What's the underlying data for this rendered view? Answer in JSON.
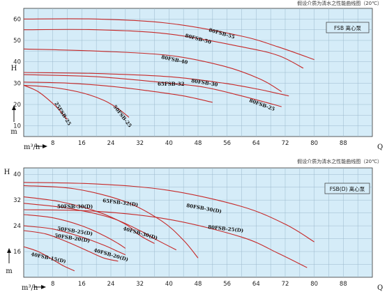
{
  "chart_data": [
    {
      "type": "line",
      "title": "FSB 离心泵",
      "subtitle": "假设介质为清水之性能曲线图（20℃）",
      "xlabel": "Q",
      "xunit": "m³/h",
      "ylabel": "H",
      "yunit": "m",
      "xlim": [
        0,
        96
      ],
      "ylim": [
        5,
        65
      ],
      "xticks": [
        8,
        16,
        24,
        32,
        40,
        48,
        56,
        64,
        72,
        80,
        88
      ],
      "yticks": [
        10,
        20,
        30,
        40,
        50,
        60
      ],
      "grid": true,
      "line_color": "#c62828",
      "series": [
        {
          "name": "80FSB-55",
          "x": [
            0,
            20,
            40,
            60,
            70,
            80
          ],
          "y": [
            60,
            60,
            58,
            52,
            47,
            41
          ]
        },
        {
          "name": "80FSB-50",
          "x": [
            0,
            20,
            40,
            60,
            70,
            77
          ],
          "y": [
            55,
            55,
            53,
            47,
            43,
            37
          ]
        },
        {
          "name": "80FSB-40",
          "x": [
            0,
            20,
            40,
            55,
            65,
            71
          ],
          "y": [
            46,
            45,
            43,
            38,
            32,
            26
          ]
        },
        {
          "name": "80FSB-30",
          "x": [
            0,
            20,
            40,
            55,
            65,
            73
          ],
          "y": [
            35,
            34.5,
            33,
            30,
            27,
            24
          ]
        },
        {
          "name": "80FSB-25",
          "x": [
            0,
            20,
            40,
            50,
            60,
            71
          ],
          "y": [
            34,
            33,
            30,
            28,
            24,
            19
          ]
        },
        {
          "name": "65FSB-32",
          "x": [
            0,
            12,
            24,
            34,
            44,
            52
          ],
          "y": [
            30.5,
            30,
            28.5,
            26.5,
            24,
            21
          ]
        },
        {
          "name": "50FSB-25",
          "x": [
            0,
            8,
            16,
            22,
            26,
            29
          ],
          "y": [
            29,
            28,
            25.5,
            22,
            18,
            14
          ]
        },
        {
          "name": "25FSB-25",
          "x": [
            0,
            4,
            8,
            10,
            12
          ],
          "y": [
            29,
            26,
            20.5,
            17,
            13
          ]
        }
      ],
      "annotations": [
        "80FSB-55",
        "80FSB-50",
        "80FSB-40",
        "80FSB-30",
        "80FSB-25",
        "65FSB-32",
        "50FSB-25",
        "25FSB-25"
      ]
    },
    {
      "type": "line",
      "title": "FSB(D) 离心泵",
      "subtitle": "假设介质为清水之性能曲线图（20℃）",
      "xlabel": "Q",
      "xunit": "m³/h",
      "ylabel": "H",
      "yunit": "m",
      "xlim": [
        0,
        96
      ],
      "ylim": [
        8,
        42
      ],
      "xticks": [
        8,
        16,
        24,
        32,
        40,
        48,
        56,
        64,
        72,
        80,
        88
      ],
      "yticks": [
        16,
        24,
        32,
        40
      ],
      "grid": true,
      "line_color": "#c62828",
      "series": [
        {
          "name": "80FSB-30(D)",
          "x": [
            0,
            20,
            40,
            60,
            72,
            80
          ],
          "y": [
            37.5,
            37,
            35,
            30,
            24.5,
            19
          ]
        },
        {
          "name": "80FSB-25(D)",
          "x": [
            0,
            20,
            40,
            60,
            70,
            78
          ],
          "y": [
            29,
            28.5,
            26,
            20.5,
            15.5,
            11
          ]
        },
        {
          "name": "65FSB-32(D)",
          "x": [
            0,
            14,
            28,
            38,
            44,
            48
          ],
          "y": [
            36.5,
            35.5,
            31.5,
            25.5,
            19.5,
            14
          ]
        },
        {
          "name": "50FSB-30(D)",
          "x": [
            0,
            10,
            20,
            28,
            32,
            36
          ],
          "y": [
            33,
            31.5,
            28.5,
            24.5,
            21,
            18.5
          ]
        },
        {
          "name": "40FSB-30(D)",
          "x": [
            0,
            12,
            24,
            32,
            36,
            42
          ],
          "y": [
            31,
            29.5,
            26.5,
            22.5,
            20,
            16.5
          ]
        },
        {
          "name": "50FSB-25(D)",
          "x": [
            0,
            8,
            16,
            22,
            26,
            28
          ],
          "y": [
            27.5,
            26.5,
            24,
            21,
            18.5,
            17
          ]
        },
        {
          "name": "50FSB-20(D)",
          "x": [
            0,
            8,
            16,
            22,
            26,
            28
          ],
          "y": [
            24,
            23,
            20.5,
            18,
            16,
            15
          ]
        },
        {
          "name": "40FSB-20(D)",
          "x": [
            0,
            6,
            12,
            18,
            22,
            26
          ],
          "y": [
            22.5,
            21.5,
            19,
            16,
            14,
            13
          ]
        },
        {
          "name": "40FSB-15(D)",
          "x": [
            0,
            4,
            8,
            11,
            14
          ],
          "y": [
            17.5,
            16,
            13.5,
            11.5,
            10
          ]
        }
      ],
      "annotations": [
        "50FSB-30(D)",
        "65FSB-32(D)",
        "80FSB-30(D)",
        "50FSB-25(D)",
        "40FSB-30(D)",
        "80FSB-25(D)",
        "50FSB-20(D)",
        "40FSB-20(D)",
        "40FSB-15(D)"
      ]
    }
  ]
}
